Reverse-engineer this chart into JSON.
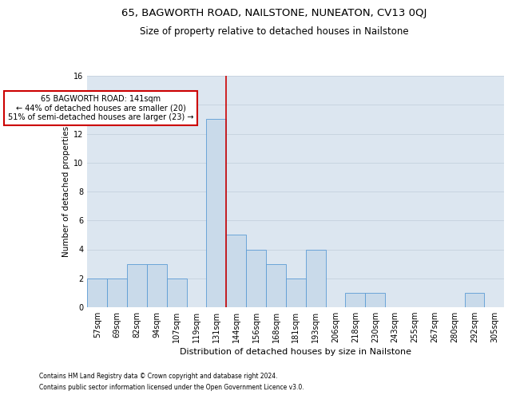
{
  "title": "65, BAGWORTH ROAD, NAILSTONE, NUNEATON, CV13 0QJ",
  "subtitle": "Size of property relative to detached houses in Nailstone",
  "xlabel": "Distribution of detached houses by size in Nailstone",
  "ylabel": "Number of detached properties",
  "bar_labels": [
    "57sqm",
    "69sqm",
    "82sqm",
    "94sqm",
    "107sqm",
    "119sqm",
    "131sqm",
    "144sqm",
    "156sqm",
    "168sqm",
    "181sqm",
    "193sqm",
    "206sqm",
    "218sqm",
    "230sqm",
    "243sqm",
    "255sqm",
    "267sqm",
    "280sqm",
    "292sqm",
    "305sqm"
  ],
  "bar_values": [
    2,
    2,
    3,
    3,
    2,
    0,
    13,
    5,
    4,
    3,
    2,
    4,
    0,
    1,
    1,
    0,
    0,
    0,
    0,
    1,
    0
  ],
  "bar_color": "#c9daea",
  "bar_edge_color": "#5b9bd5",
  "vline_index": 6.5,
  "annotation_text": "65 BAGWORTH ROAD: 141sqm\n← 44% of detached houses are smaller (20)\n51% of semi-detached houses are larger (23) →",
  "annotation_box_color": "#ffffff",
  "annotation_box_edge_color": "#cc0000",
  "vline_color": "#cc0000",
  "ylim": [
    0,
    16
  ],
  "yticks": [
    0,
    2,
    4,
    6,
    8,
    10,
    12,
    14,
    16
  ],
  "grid_color": "#c8d4e0",
  "background_color": "#dce6f0",
  "footer_line1": "Contains HM Land Registry data © Crown copyright and database right 2024.",
  "footer_line2": "Contains public sector information licensed under the Open Government Licence v3.0.",
  "title_fontsize": 9.5,
  "subtitle_fontsize": 8.5,
  "ylabel_fontsize": 7.5,
  "xlabel_fontsize": 8,
  "tick_fontsize": 7,
  "annotation_fontsize": 7,
  "footer_fontsize": 5.5
}
